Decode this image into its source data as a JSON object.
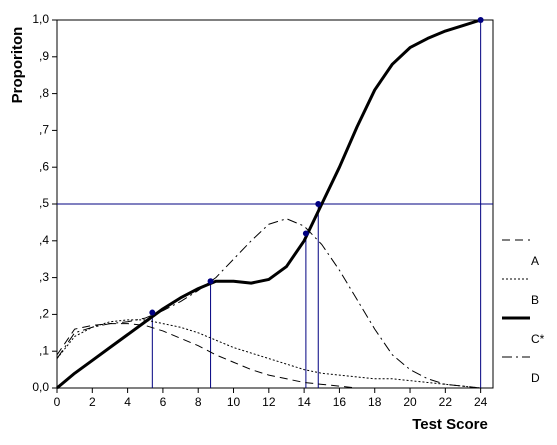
{
  "chart_data": {
    "type": "line",
    "y_label": "Proporiton",
    "x_label": "Test Score",
    "x": [
      0,
      1,
      2,
      3,
      4,
      5,
      6,
      7,
      8,
      9,
      10,
      11,
      12,
      13,
      14,
      15,
      16,
      17,
      18,
      19,
      20,
      21,
      22,
      23,
      24
    ],
    "series": [
      {
        "name": "A",
        "color": "#000000",
        "style": "dashed",
        "values": [
          0.09,
          0.16,
          0.17,
          0.175,
          0.175,
          0.17,
          0.155,
          0.135,
          0.115,
          0.09,
          0.07,
          0.05,
          0.035,
          0.025,
          0.015,
          0.01,
          0.005,
          0,
          0,
          0,
          0,
          0,
          0,
          0,
          0
        ]
      },
      {
        "name": "B",
        "color": "#000000",
        "style": "dotted",
        "values": [
          0.08,
          0.14,
          0.165,
          0.18,
          0.185,
          0.185,
          0.175,
          0.165,
          0.15,
          0.13,
          0.11,
          0.095,
          0.08,
          0.065,
          0.05,
          0.04,
          0.035,
          0.03,
          0.025,
          0.025,
          0.02,
          0.015,
          0.01,
          0.005,
          0
        ]
      },
      {
        "name": "C*",
        "color": "#000000",
        "style": "thick",
        "values": [
          0,
          0.04,
          0.075,
          0.11,
          0.145,
          0.18,
          0.215,
          0.245,
          0.27,
          0.29,
          0.29,
          0.285,
          0.295,
          0.33,
          0.4,
          0.5,
          0.6,
          0.71,
          0.81,
          0.88,
          0.925,
          0.95,
          0.97,
          0.985,
          1.0
        ]
      },
      {
        "name": "D",
        "color": "#000000",
        "style": "dashdot",
        "values": [
          0.08,
          0.15,
          0.165,
          0.175,
          0.18,
          0.19,
          0.21,
          0.235,
          0.265,
          0.3,
          0.35,
          0.4,
          0.445,
          0.46,
          0.44,
          0.39,
          0.32,
          0.24,
          0.16,
          0.09,
          0.05,
          0.025,
          0.01,
          0.005,
          0
        ]
      }
    ],
    "markers": {
      "x": [
        5.4,
        8.7,
        14.1,
        14.8,
        24.0
      ],
      "y": [
        0.205,
        0.29,
        0.42,
        0.5,
        1.0
      ]
    },
    "hline": 0.5,
    "reference_color": "#000080",
    "xlim": [
      0,
      24.7
    ],
    "xticks": [
      0,
      2,
      4,
      6,
      8,
      10,
      12,
      14,
      16,
      18,
      20,
      22,
      24
    ],
    "ylim": [
      0,
      1
    ],
    "yticks": [
      {
        "value": 0,
        "label": "0,0"
      },
      {
        "value": 0.1,
        "label": ",1"
      },
      {
        "value": 0.2,
        "label": ",2"
      },
      {
        "value": 0.3,
        "label": ",3"
      },
      {
        "value": 0.4,
        "label": ",4"
      },
      {
        "value": 0.5,
        "label": ",5"
      },
      {
        "value": 0.6,
        "label": ",6"
      },
      {
        "value": 0.7,
        "label": ",7"
      },
      {
        "value": 0.8,
        "label": ",8"
      },
      {
        "value": 0.9,
        "label": ",9"
      },
      {
        "value": 1,
        "label": "1,0"
      }
    ],
    "legend": "right"
  }
}
